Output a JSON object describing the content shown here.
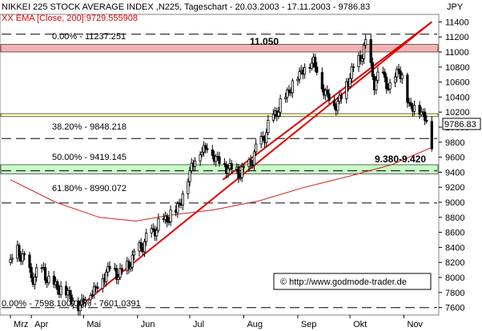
{
  "chart_data": {
    "type": "candlestick",
    "title": "NIKKEI 225 STOCK AVERAGE INDEX ,N225, Tageschart - 20.03.2003 - 17.11.2003 - 9786.83",
    "indicator_label": "XX EMA [Close, 200]:9729.555908",
    "currency": "JPY",
    "last_price": "9786.83",
    "ylim": [
      7500,
      11500
    ],
    "xlim": [
      "2003-03-20",
      "2003-11-17"
    ],
    "y_ticks": [
      "11400",
      "11200",
      "11000",
      "10800",
      "10600",
      "10400",
      "10200",
      "10000",
      "9800",
      "9600",
      "9400",
      "9200",
      "9000",
      "8800",
      "8600",
      "8400",
      "8200",
      "8000",
      "7800",
      "7600"
    ],
    "y_tick_values": [
      11400,
      11200,
      11000,
      10800,
      10600,
      10400,
      10200,
      10000,
      9800,
      9600,
      9400,
      9200,
      9000,
      8800,
      8600,
      8400,
      8200,
      8000,
      7800,
      7600
    ],
    "months": [
      {
        "label": "Mrz",
        "date": "2003-03-20"
      },
      {
        "label": "Apr",
        "date": "2003-04-01"
      },
      {
        "label": "Mai",
        "date": "2003-05-01"
      },
      {
        "label": "Jun",
        "date": "2003-06-01"
      },
      {
        "label": "Jul",
        "date": "2003-07-01"
      },
      {
        "label": "Aug",
        "date": "2003-08-01"
      },
      {
        "label": "Sep",
        "date": "2003-09-01"
      },
      {
        "label": "Okt",
        "date": "2003-10-01"
      },
      {
        "label": "Nov",
        "date": "2003-11-01"
      }
    ],
    "fib_levels": [
      {
        "label": "0.00% - 11237.251",
        "value": 11237.251
      },
      {
        "label": "38.20% - 9848.218",
        "value": 9848.218
      },
      {
        "label": "50.00% - 9419.145",
        "value": 9419.145
      },
      {
        "label": "61.80% - 8990.072",
        "value": 8990.072
      },
      {
        "label": "0.00% - 7598.100.00% - 7601.0391",
        "value": 7598.1
      }
    ],
    "zones": [
      {
        "label": "11.050",
        "low": 11000,
        "high": 11100,
        "color": "#f4b3b3"
      },
      {
        "label": "9.380-9.420",
        "low": 9380,
        "high": 9500,
        "color": "#c8ffc8"
      },
      {
        "label": "",
        "low": 10140,
        "high": 10180,
        "color": "#ffffc0"
      }
    ],
    "trendline": {
      "start": {
        "date": "2003-04-28",
        "value": 7600
      },
      "end": {
        "date": "2003-11-17",
        "value": 11400
      }
    },
    "trendline2": {
      "start": {
        "date": "2003-07-20",
        "value": 9300
      },
      "end": {
        "date": "2003-11-17",
        "value": 11400
      }
    },
    "series_close": [
      [
        "2003-03-20",
        8200
      ],
      [
        "2003-03-24",
        8350
      ],
      [
        "2003-03-27",
        8300
      ],
      [
        "2003-04-01",
        8000
      ],
      [
        "2003-04-04",
        8050
      ],
      [
        "2003-04-08",
        8100
      ],
      [
        "2003-04-11",
        7950
      ],
      [
        "2003-04-15",
        7900
      ],
      [
        "2003-04-18",
        7850
      ],
      [
        "2003-04-22",
        7800
      ],
      [
        "2003-04-25",
        7700
      ],
      [
        "2003-04-28",
        7620
      ],
      [
        "2003-05-02",
        7750
      ],
      [
        "2003-05-07",
        7850
      ],
      [
        "2003-05-12",
        8000
      ],
      [
        "2003-05-16",
        8150
      ],
      [
        "2003-05-21",
        8050
      ],
      [
        "2003-05-26",
        8150
      ],
      [
        "2003-05-30",
        8300
      ],
      [
        "2003-06-04",
        8450
      ],
      [
        "2003-06-09",
        8600
      ],
      [
        "2003-06-13",
        8700
      ],
      [
        "2003-06-18",
        8800
      ],
      [
        "2003-06-23",
        8900
      ],
      [
        "2003-06-27",
        9100
      ],
      [
        "2003-07-02",
        9500
      ],
      [
        "2003-07-07",
        9700
      ],
      [
        "2003-07-11",
        9750
      ],
      [
        "2003-07-16",
        9600
      ],
      [
        "2003-07-21",
        9500
      ],
      [
        "2003-07-25",
        9450
      ],
      [
        "2003-07-30",
        9400
      ],
      [
        "2003-08-04",
        9500
      ],
      [
        "2003-08-08",
        9700
      ],
      [
        "2003-08-13",
        9900
      ],
      [
        "2003-08-18",
        10150
      ],
      [
        "2003-08-22",
        10300
      ],
      [
        "2003-08-27",
        10500
      ],
      [
        "2003-09-01",
        10700
      ],
      [
        "2003-09-05",
        10800
      ],
      [
        "2003-09-10",
        10900
      ],
      [
        "2003-09-16",
        10500
      ],
      [
        "2003-09-22",
        10300
      ],
      [
        "2003-09-26",
        10400
      ],
      [
        "2003-10-01",
        10700
      ],
      [
        "2003-10-06",
        10900
      ],
      [
        "2003-10-10",
        11100
      ],
      [
        "2003-10-15",
        10600
      ],
      [
        "2003-10-20",
        10700
      ],
      [
        "2003-10-24",
        10500
      ],
      [
        "2003-10-29",
        10800
      ],
      [
        "2003-11-04",
        10300
      ],
      [
        "2003-11-10",
        10250
      ],
      [
        "2003-11-14",
        10100
      ],
      [
        "2003-11-17",
        9786.83
      ]
    ],
    "ema_200": [
      [
        "2003-03-20",
        9300
      ],
      [
        "2003-04-15",
        9000
      ],
      [
        "2003-05-10",
        8800
      ],
      [
        "2003-05-31",
        8750
      ],
      [
        "2003-06-20",
        8830
      ],
      [
        "2003-07-15",
        8900
      ],
      [
        "2003-08-10",
        9020
      ],
      [
        "2003-09-05",
        9200
      ],
      [
        "2003-10-01",
        9350
      ],
      [
        "2003-10-25",
        9500
      ],
      [
        "2003-11-17",
        9730
      ]
    ],
    "watermark": "© http://www.godmode-trader.de"
  }
}
